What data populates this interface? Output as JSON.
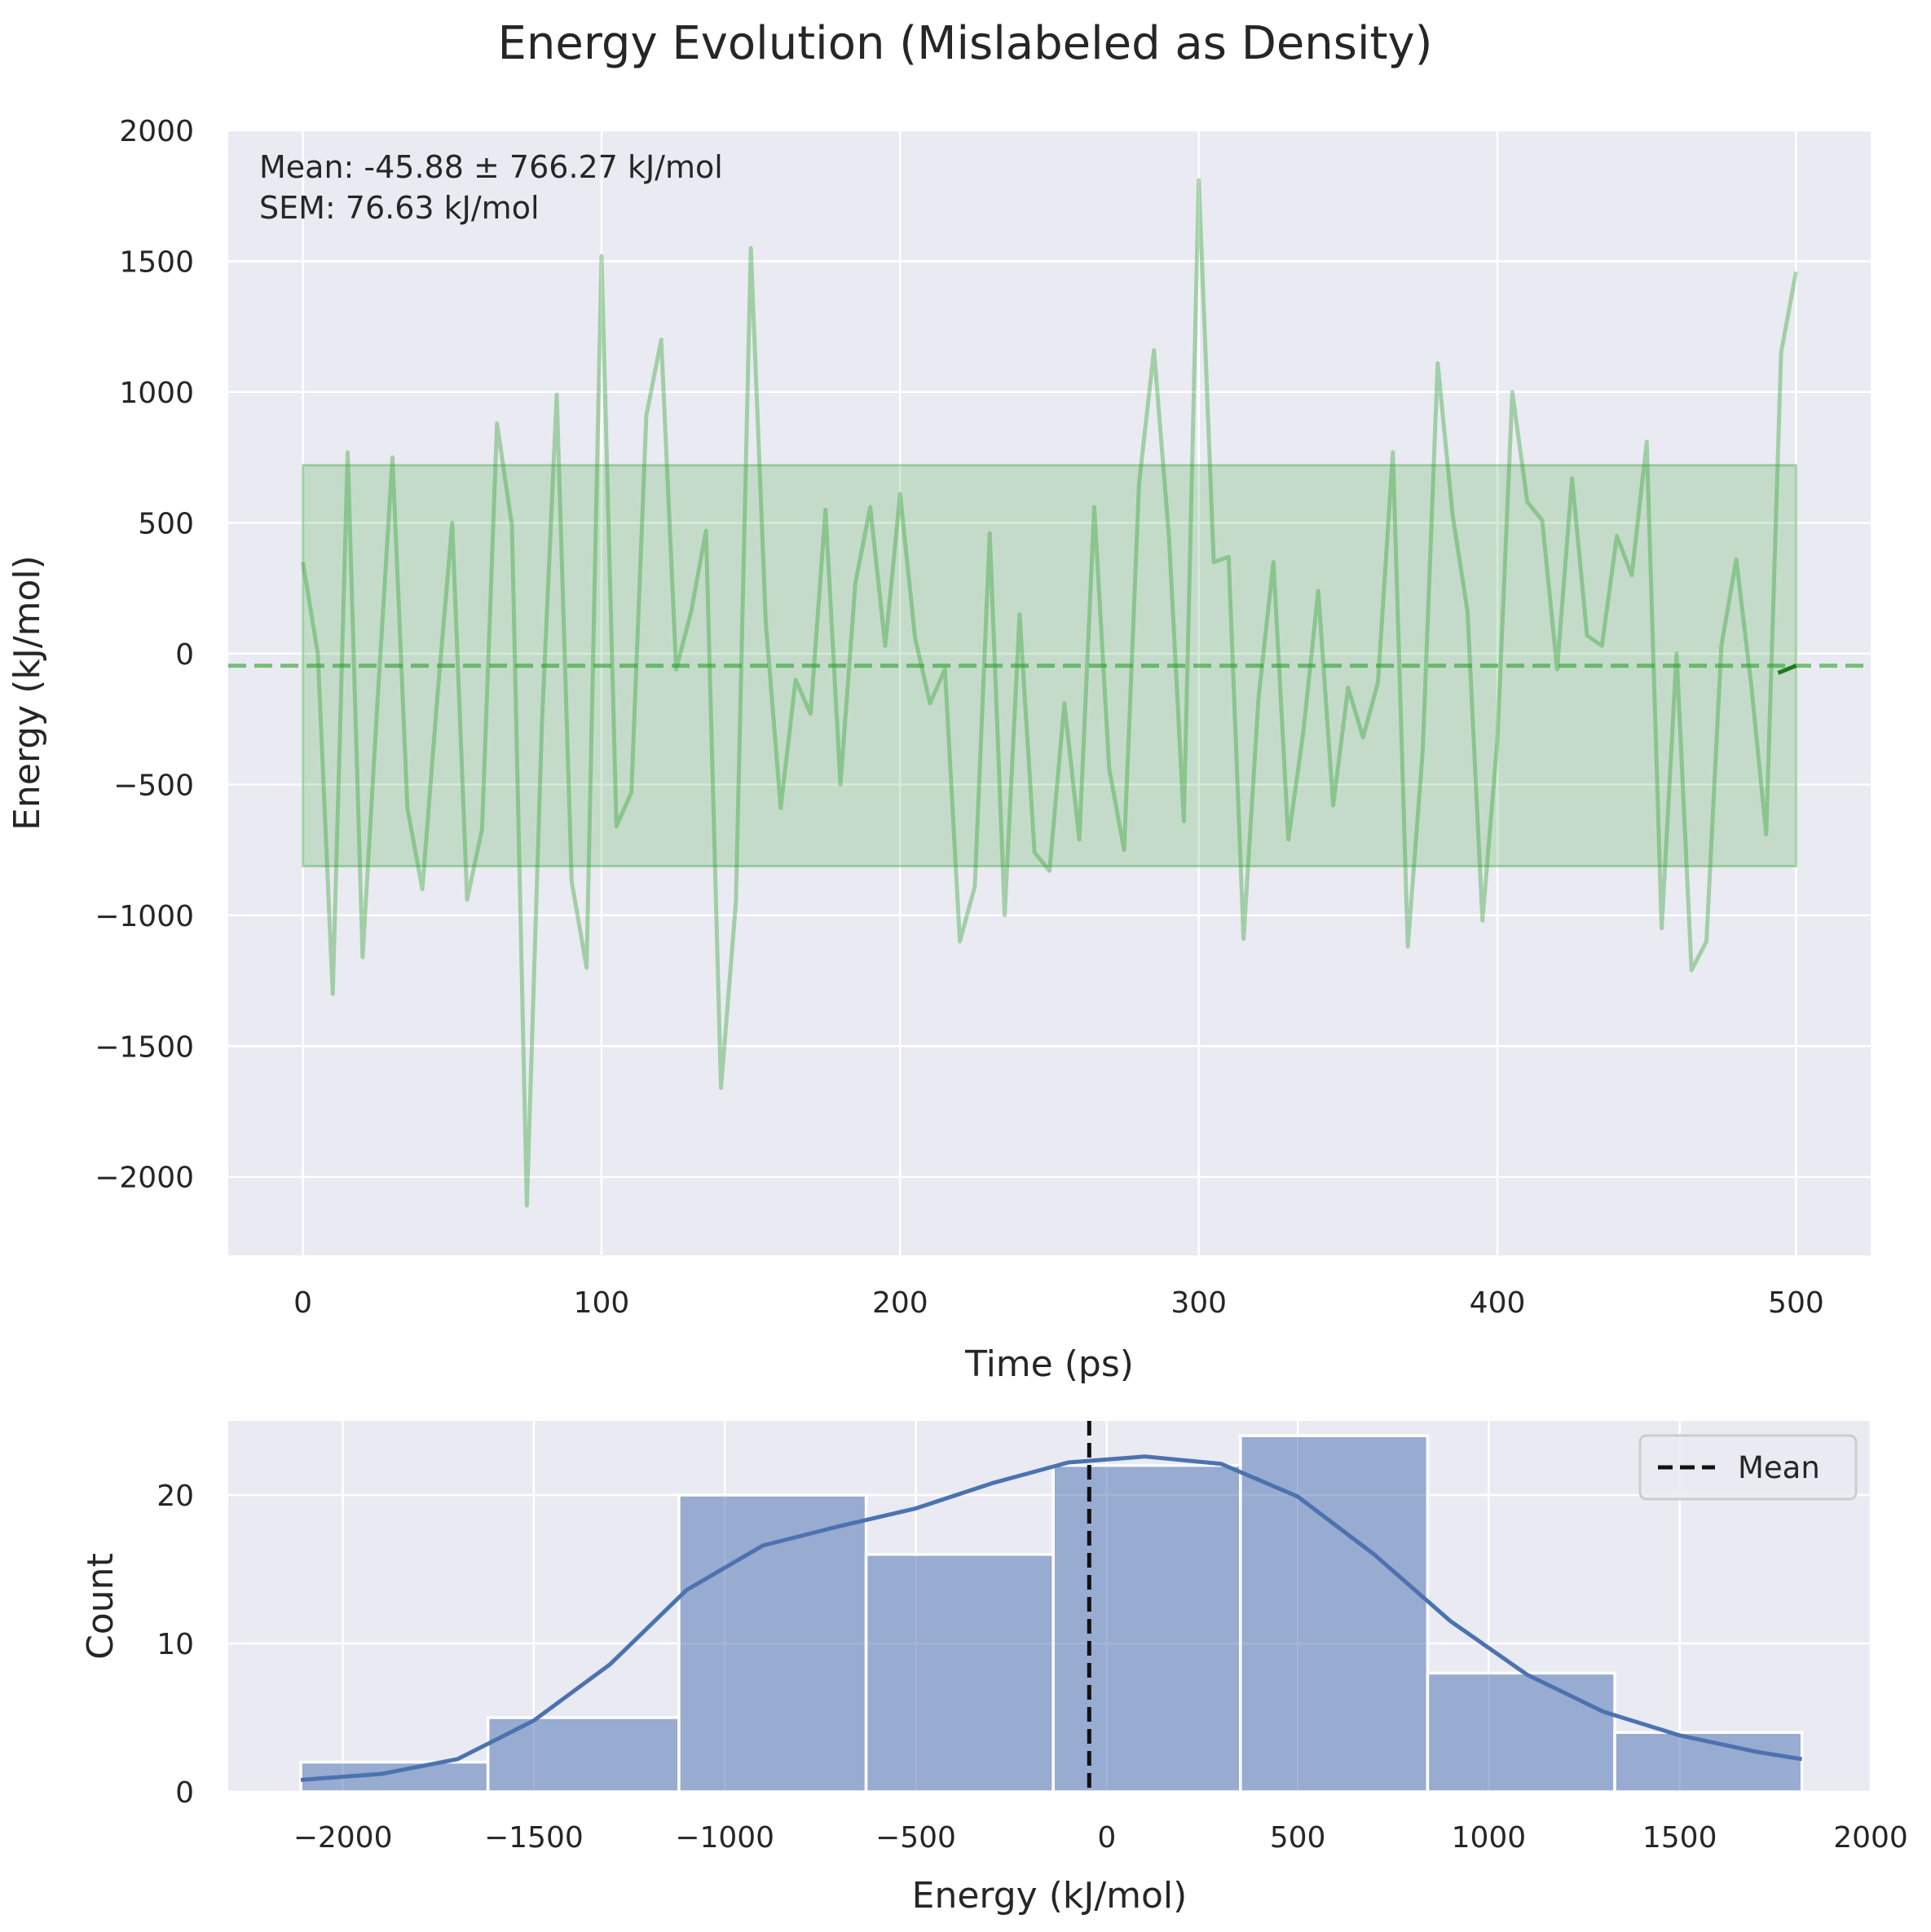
{
  "figure": {
    "title": "Energy Evolution (Mislabeled as Density)"
  },
  "chart_data": [
    {
      "type": "line",
      "title": "",
      "xlabel": "Time (ps)",
      "ylabel": "Energy (kJ/mol)",
      "xlim": [
        -25,
        525
      ],
      "ylim": [
        -2300,
        2000
      ],
      "xticks": [
        0,
        100,
        200,
        300,
        400,
        500
      ],
      "yticks": [
        -2000,
        -1500,
        -1000,
        -500,
        0,
        500,
        1000,
        1500,
        2000
      ],
      "xtick_labels": [
        "0",
        "100",
        "200",
        "300",
        "400",
        "500"
      ],
      "ytick_labels": [
        "−2000",
        "−1500",
        "−1000",
        "−500",
        "0",
        "500",
        "1000",
        "1500",
        "2000"
      ],
      "grid": true,
      "annotation_lines": [
        "Mean: -45.88 ± 766.27 kJ/mol",
        "SEM: 76.63 kJ/mol"
      ],
      "mean": -45.88,
      "std_band": [
        -812.15,
        720.39
      ],
      "series": [
        {
          "color": "#2ca02c",
          "x": [
            0,
            5,
            10,
            15,
            20,
            25,
            30,
            35,
            40,
            45,
            50,
            55,
            60,
            65,
            70,
            75,
            80,
            85,
            90,
            95,
            100,
            105,
            110,
            115,
            120,
            125,
            130,
            135,
            140,
            145,
            150,
            155,
            160,
            165,
            170,
            175,
            180,
            185,
            190,
            195,
            200,
            205,
            210,
            215,
            220,
            225,
            230,
            235,
            240,
            245,
            250,
            255,
            260,
            265,
            270,
            275,
            280,
            285,
            290,
            295,
            300,
            305,
            310,
            315,
            320,
            325,
            330,
            335,
            340,
            345,
            350,
            355,
            360,
            365,
            370,
            375,
            380,
            385,
            390,
            395,
            400,
            405,
            410,
            415,
            420,
            425,
            430,
            435,
            440,
            445,
            450,
            455,
            460,
            465,
            470,
            475,
            480,
            485,
            490,
            495,
            500
          ],
          "y": [
            350,
            0,
            -1300,
            770,
            -1160,
            -180,
            750,
            -590,
            -900,
            -170,
            500,
            -940,
            -670,
            880,
            490,
            -2110,
            -280,
            990,
            -870,
            -1200,
            1520,
            -660,
            -530,
            910,
            1200,
            -60,
            160,
            470,
            -1660,
            -950,
            1550,
            120,
            -590,
            -100,
            -230,
            550,
            -500,
            270,
            560,
            30,
            610,
            60,
            -190,
            -60,
            -1100,
            -890,
            460,
            -1000,
            150,
            -760,
            -830,
            -190,
            -710,
            560,
            -440,
            -750,
            650,
            1160,
            450,
            -640,
            1810,
            350,
            370,
            -1090,
            -170,
            350,
            -710,
            -300,
            240,
            -580,
            -130,
            -320,
            -110,
            770,
            -1120,
            -370,
            1110,
            530,
            160,
            -1020,
            -330,
            1000,
            580,
            510,
            -60,
            670,
            70,
            30,
            450,
            300,
            810,
            -1050,
            0,
            -1210,
            -1100,
            30,
            360,
            -120,
            -690,
            1150,
            1460
          ]
        }
      ]
    },
    {
      "type": "bar",
      "title": "",
      "xlabel": "Energy (kJ/mol)",
      "ylabel": "Count",
      "xlim": [
        -2300,
        2000
      ],
      "ylim": [
        0,
        25
      ],
      "xticks": [
        -2000,
        -1500,
        -1000,
        -500,
        0,
        500,
        1000,
        1500,
        2000
      ],
      "yticks": [
        0,
        10,
        20
      ],
      "xtick_labels": [
        "−2000",
        "−1500",
        "−1000",
        "−500",
        "0",
        "500",
        "1000",
        "1500",
        "2000"
      ],
      "ytick_labels": [
        "0",
        "10",
        "20"
      ],
      "grid": true,
      "legend_position": "top-right",
      "legend": [
        "Mean"
      ],
      "mean": -45.88,
      "bin_edges": [
        -2110,
        -1620,
        -1120,
        -630,
        -140,
        350,
        840,
        1330,
        1820
      ],
      "values": [
        2,
        5,
        20,
        16,
        22,
        24,
        8,
        4
      ],
      "kde_x": [
        -2110,
        -1900,
        -1700,
        -1500,
        -1300,
        -1100,
        -900,
        -700,
        -500,
        -300,
        -100,
        100,
        300,
        500,
        700,
        900,
        1100,
        1300,
        1500,
        1700,
        1820
      ],
      "kde_y": [
        0.8,
        1.2,
        2.2,
        4.8,
        8.6,
        13.6,
        16.6,
        17.9,
        19.1,
        20.8,
        22.2,
        22.6,
        22.1,
        19.9,
        16.0,
        11.5,
        7.9,
        5.4,
        3.8,
        2.7,
        2.2
      ]
    }
  ]
}
